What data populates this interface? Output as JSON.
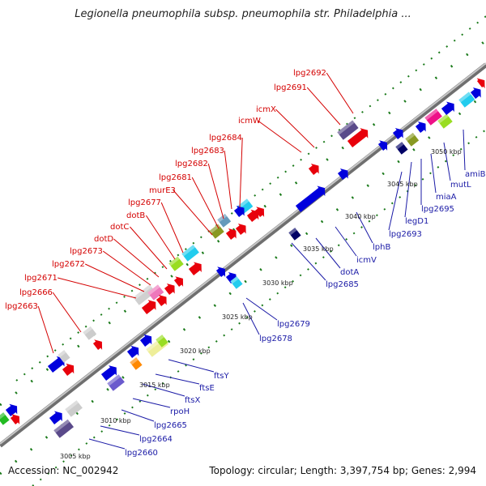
{
  "title": "Legionella pneumophila subsp. pneumophila str. Philadelphia ...",
  "accession": "Accession: NC_002942",
  "summary": "Topology: circular; Length: 3,397,754 bp; Genes: 2,994",
  "colors": {
    "top_strand_label": "#d40000",
    "bottom_strand_label": "#1a1aa6",
    "forward_gene": "#e8000b",
    "reverse_gene": "#0000dd",
    "backbone": "#888888",
    "tick": "#1a7a1a"
  },
  "kbp_ticks": [
    "3005 kbp",
    "3010 kbp",
    "3015 kbp",
    "3020 kbp",
    "3025 kbp",
    "3030 kbp",
    "3035 kbp",
    "3040 kbp",
    "3045 kbp",
    "3050 kbp"
  ],
  "top_labels": [
    "lpg2663",
    "lpg2666",
    "lpg2671",
    "lpg2672",
    "lpg2673",
    "dotD",
    "dotC",
    "dotB",
    "lpg2677",
    "murE3",
    "lpg2681",
    "lpg2682",
    "lpg2683",
    "lpg2684",
    "icmW",
    "icmX",
    "lpg2691",
    "lpg2692"
  ],
  "bottom_labels": [
    "lpg2660",
    "lpg2664",
    "lpg2665",
    "rpoH",
    "ftsX",
    "ftsE",
    "ftsY",
    "lpg2678",
    "lpg2679",
    "lpg2685",
    "dotA",
    "icmV",
    "lphB",
    "lpg2693",
    "legD1",
    "lpg2695",
    "miaA",
    "mutL",
    "amiB"
  ]
}
